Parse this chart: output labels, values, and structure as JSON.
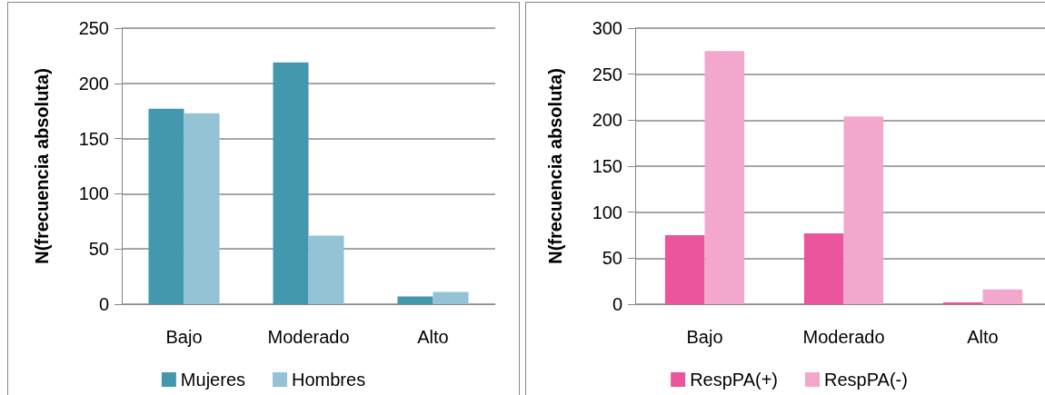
{
  "chart_data": [
    {
      "type": "bar",
      "ylabel": "N(frecuencia absoluta)",
      "categories": [
        "Bajo",
        "Moderado",
        "Alto"
      ],
      "series": [
        {
          "name": "Mujeres",
          "color": "#4398ae",
          "values": [
            177,
            219,
            7
          ]
        },
        {
          "name": "Hombres",
          "color": "#93c3d4",
          "values": [
            173,
            62,
            11
          ]
        }
      ],
      "ylim": [
        0,
        250
      ],
      "yticks": [
        0,
        50,
        100,
        150,
        200,
        250
      ],
      "grid": "y",
      "legend": "bottom"
    },
    {
      "type": "bar",
      "ylabel": "N(frecuencia absoluta)",
      "categories": [
        "Bajo",
        "Moderado",
        "Alto"
      ],
      "series": [
        {
          "name": "RespPA(+)",
          "color": "#ea559d",
          "values": [
            75,
            77,
            2
          ]
        },
        {
          "name": "RespPA(-)",
          "color": "#f4a7cc",
          "values": [
            275,
            204,
            16
          ]
        }
      ],
      "ylim": [
        0,
        300
      ],
      "yticks": [
        0,
        50,
        100,
        150,
        200,
        250,
        300
      ],
      "grid": "y",
      "legend": "bottom"
    }
  ]
}
